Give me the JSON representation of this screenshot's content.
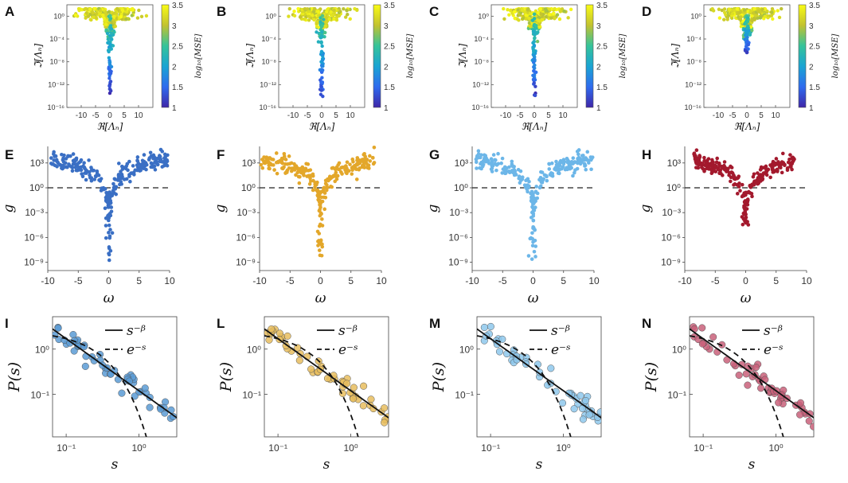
{
  "figure": {
    "panel_letters": [
      "A",
      "B",
      "C",
      "D",
      "E",
      "F",
      "G",
      "H",
      "I",
      "L",
      "M",
      "N"
    ]
  },
  "chart_data": [
    {
      "panel": "A",
      "type": "scatter",
      "subject": "eigenvalue spectrum colored by log10 MSE",
      "xlabel": "ℜ[Λₙ]",
      "ylabel": "ℑ[Λₙ]",
      "xlim": [
        -15,
        15
      ],
      "xticks": [
        -10,
        -5,
        0,
        5,
        10
      ],
      "ylim_log10": [
        -16,
        2
      ],
      "yticks": [
        "10⁻¹⁶",
        "10⁻¹²",
        "10⁻⁸",
        "10⁻⁴",
        "10⁰"
      ],
      "colorbar": {
        "label": "log₁₀[MSE]",
        "range": [
          1,
          3.5
        ],
        "ticks": [
          "1",
          "1.5",
          "2",
          "2.5",
          "3",
          "3.5"
        ]
      },
      "tail_min_log10": -13.5
    },
    {
      "panel": "B",
      "type": "scatter",
      "subject": "eigenvalue spectrum colored by log10 MSE",
      "xlabel": "ℜ[Λₙ]",
      "ylabel": "ℑ[Λₙ]",
      "xlim": [
        -15,
        15
      ],
      "xticks": [
        -10,
        -5,
        0,
        5,
        10
      ],
      "ylim_log10": [
        -16,
        2
      ],
      "yticks": [
        "10⁻¹⁶",
        "10⁻¹²",
        "10⁻⁸",
        "10⁻⁴",
        "10⁰"
      ],
      "colorbar": {
        "label": "log₁₀[MSE]",
        "range": [
          1,
          3.5
        ],
        "ticks": [
          "1",
          "1.5",
          "2",
          "2.5",
          "3",
          "3.5"
        ]
      },
      "tail_min_log10": -14.5
    },
    {
      "panel": "C",
      "type": "scatter",
      "subject": "eigenvalue spectrum colored by log10 MSE",
      "xlabel": "ℜ[Λₙ]",
      "ylabel": "ℑ[Λₙ]",
      "xlim": [
        -15,
        15
      ],
      "xticks": [
        -10,
        -5,
        0,
        5,
        10
      ],
      "ylim_log10": [
        -16,
        2
      ],
      "yticks": [
        "10⁻¹⁶",
        "10⁻¹²",
        "10⁻⁸",
        "10⁻⁴",
        "10⁰"
      ],
      "colorbar": {
        "label": "log₁₀[MSE]",
        "range": [
          1,
          3.5
        ],
        "ticks": [
          "1",
          "1.5",
          "2",
          "2.5",
          "3",
          "3.5"
        ]
      },
      "tail_min_log10": -14
    },
    {
      "panel": "D",
      "type": "scatter",
      "subject": "eigenvalue spectrum colored by log10 MSE",
      "xlabel": "ℜ[Λₙ]",
      "ylabel": "ℑ[Λₙ]",
      "xlim": [
        -15,
        15
      ],
      "xticks": [
        -10,
        -5,
        0,
        5,
        10
      ],
      "ylim_log10": [
        -16,
        2
      ],
      "yticks": [
        "10⁻¹⁶",
        "10⁻¹²",
        "10⁻⁸",
        "10⁻⁴",
        "10⁰"
      ],
      "colorbar": {
        "label": "log₁₀[MSE]",
        "range": [
          1,
          3.5
        ],
        "ticks": [
          "1",
          "1.5",
          "2",
          "2.5",
          "3",
          "3.5"
        ]
      },
      "tail_min_log10": -6.5
    },
    {
      "panel": "E",
      "type": "scatter",
      "xlabel": "ω",
      "ylabel": "g",
      "color": "#3a6fc4",
      "xlim": [
        -10,
        10
      ],
      "xticks": [
        -10,
        -5,
        0,
        5,
        10
      ],
      "ylim_log10": [
        -10,
        5
      ],
      "yticks": [
        "10⁻⁹",
        "10⁻⁶",
        "10⁻³",
        "10⁰",
        "10³"
      ],
      "reference_line": {
        "y": 1,
        "style": "dashed"
      },
      "x_range": [
        -9.5,
        9.7
      ],
      "min_log10": -9.2
    },
    {
      "panel": "F",
      "type": "scatter",
      "xlabel": "ω",
      "ylabel": "g",
      "color": "#e3a72a",
      "xlim": [
        -10,
        10
      ],
      "xticks": [
        -10,
        -5,
        0,
        5,
        10
      ],
      "ylim_log10": [
        -10,
        5
      ],
      "yticks": [
        "10⁻⁹",
        "10⁻⁶",
        "10⁻³",
        "10⁰",
        "10³"
      ],
      "reference_line": {
        "y": 1,
        "style": "dashed"
      },
      "x_range": [
        -9.8,
        9
      ],
      "min_log10": -8.2
    },
    {
      "panel": "G",
      "type": "scatter",
      "xlabel": "ω",
      "ylabel": "g",
      "color": "#6cb6e8",
      "xlim": [
        -10,
        10
      ],
      "xticks": [
        -10,
        -5,
        0,
        5,
        10
      ],
      "ylim_log10": [
        -10,
        5
      ],
      "yticks": [
        "10⁻⁹",
        "10⁻⁶",
        "10⁻³",
        "10⁰",
        "10³"
      ],
      "reference_line": {
        "y": 1,
        "style": "dashed"
      },
      "x_range": [
        -9.5,
        9.8
      ],
      "min_log10": -9.0
    },
    {
      "panel": "H",
      "type": "scatter",
      "xlabel": "ω",
      "ylabel": "g",
      "color": "#a3192d",
      "xlim": [
        -10,
        10
      ],
      "xticks": [
        -10,
        -5,
        0,
        5,
        10
      ],
      "ylim_log10": [
        -10,
        5
      ],
      "yticks": [
        "10⁻⁹",
        "10⁻⁶",
        "10⁻³",
        "10⁰",
        "10³"
      ],
      "reference_line": {
        "y": 1,
        "style": "dashed"
      },
      "x_range": [
        -8.5,
        8
      ],
      "min_log10": -4.5
    },
    {
      "panel": "I",
      "type": "scatter",
      "xlabel": "s",
      "ylabel": "P(s)",
      "color": "#5b9bd5",
      "xscale": "log",
      "yscale": "log",
      "xlim": [
        0.065,
        3.3
      ],
      "ylim": [
        0.0115,
        5.2
      ],
      "xticks": [
        "10⁻¹",
        "10⁰"
      ],
      "yticks": [
        "10⁻¹",
        "10⁰"
      ],
      "legend": [
        {
          "label": "s⁻ᵝ",
          "style": "solid"
        },
        {
          "label": "e⁻ˢ",
          "style": "dashed"
        }
      ],
      "power_law": {
        "amplitude": 0.12,
        "beta": 1.15
      }
    },
    {
      "panel": "L",
      "type": "scatter",
      "xlabel": "s",
      "ylabel": "P(s)",
      "color": "#e8bd5e",
      "xscale": "log",
      "yscale": "log",
      "xlim": [
        0.065,
        3.3
      ],
      "ylim": [
        0.0115,
        5.2
      ],
      "xticks": [
        "10⁻¹",
        "10⁰"
      ],
      "yticks": [
        "10⁻¹",
        "10⁰"
      ],
      "legend": [
        {
          "label": "s⁻ᵝ",
          "style": "solid"
        },
        {
          "label": "e⁻ˢ",
          "style": "dashed"
        }
      ],
      "power_law": {
        "amplitude": 0.12,
        "beta": 1.15
      }
    },
    {
      "panel": "M",
      "type": "scatter",
      "xlabel": "s",
      "ylabel": "P(s)",
      "color": "#8ec8ec",
      "xscale": "log",
      "yscale": "log",
      "xlim": [
        0.065,
        3.3
      ],
      "ylim": [
        0.0115,
        5.2
      ],
      "xticks": [
        "10⁻¹",
        "10⁰"
      ],
      "yticks": [
        "10⁻¹",
        "10⁰"
      ],
      "legend": [
        {
          "label": "s⁻ᵝ",
          "style": "solid"
        },
        {
          "label": "e⁻ˢ",
          "style": "dashed"
        }
      ],
      "power_law": {
        "amplitude": 0.12,
        "beta": 1.15
      }
    },
    {
      "panel": "N",
      "type": "scatter",
      "xlabel": "s",
      "ylabel": "P(s)",
      "color": "#c9607a",
      "xscale": "log",
      "yscale": "log",
      "xlim": [
        0.065,
        3.3
      ],
      "ylim": [
        0.0115,
        5.2
      ],
      "xticks": [
        "10⁻¹",
        "10⁰"
      ],
      "yticks": [
        "10⁻¹",
        "10⁰"
      ],
      "legend": [
        {
          "label": "s⁻ᵝ",
          "style": "solid"
        },
        {
          "label": "e⁻ˢ",
          "style": "dashed"
        }
      ],
      "power_law": {
        "amplitude": 0.12,
        "beta": 1.15
      }
    }
  ]
}
